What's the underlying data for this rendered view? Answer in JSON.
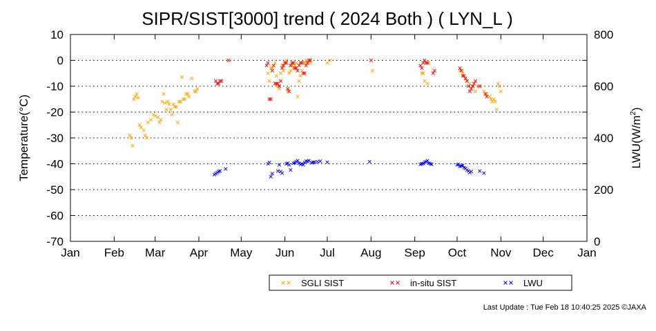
{
  "chart_data": {
    "type": "scatter",
    "title": "SIPR/SIST[3000] trend ( 2024 Both ) ( LYN_L )",
    "ylabel": "Temperature(°C)",
    "y2label_main": "LWU(W/m",
    "y2label_sup": "2",
    "y2label_end": ")",
    "ylim": [
      -70,
      10
    ],
    "y2lim": [
      0,
      800
    ],
    "yticks": [
      "10",
      "0",
      "-10",
      "-20",
      "-30",
      "-40",
      "-50",
      "-60",
      "-70"
    ],
    "y2ticks": [
      "800",
      "600",
      "400",
      "200",
      "0"
    ],
    "xlim": [
      0,
      366
    ],
    "xticks": [
      {
        "label": "Jan",
        "x": 0
      },
      {
        "label": "Feb",
        "x": 31
      },
      {
        "label": "Mar",
        "x": 60
      },
      {
        "label": "Apr",
        "x": 91
      },
      {
        "label": "May",
        "x": 121
      },
      {
        "label": "Jun",
        "x": 152
      },
      {
        "label": "Jul",
        "x": 182
      },
      {
        "label": "Aug",
        "x": 213
      },
      {
        "label": "Sep",
        "x": 244
      },
      {
        "label": "Oct",
        "x": 274
      },
      {
        "label": "Nov",
        "x": 305
      },
      {
        "label": "Dec",
        "x": 335
      },
      {
        "label": "Jan",
        "x": 366
      }
    ],
    "grid": "horizontal-dotted",
    "legend_placement": "bottom-center",
    "series": [
      {
        "name": "SGLI SIST",
        "color": "#ffa500",
        "axis": "left",
        "points": [
          [
            42,
            -29
          ],
          [
            43,
            -30
          ],
          [
            44,
            -33
          ],
          [
            45,
            -15
          ],
          [
            46,
            -14
          ],
          [
            47,
            -13
          ],
          [
            48,
            -14.5
          ],
          [
            49,
            -25
          ],
          [
            50,
            -26
          ],
          [
            52,
            -27
          ],
          [
            53,
            -29
          ],
          [
            54,
            -30
          ],
          [
            55,
            -24
          ],
          [
            57,
            -23
          ],
          [
            59,
            -21
          ],
          [
            60,
            -21.5
          ],
          [
            62,
            -22
          ],
          [
            63,
            -24
          ],
          [
            64,
            -23
          ],
          [
            65,
            -16
          ],
          [
            66,
            -13
          ],
          [
            67,
            -16.5
          ],
          [
            68,
            -19
          ],
          [
            69,
            -16
          ],
          [
            70,
            -17
          ],
          [
            71,
            -19
          ],
          [
            72,
            -21
          ],
          [
            73,
            -17
          ],
          [
            74,
            -18
          ],
          [
            75,
            -18
          ],
          [
            76,
            -24
          ],
          [
            77,
            -16
          ],
          [
            78,
            -16
          ],
          [
            79,
            -6.5
          ],
          [
            80,
            -15
          ],
          [
            81,
            -15
          ],
          [
            82,
            -13
          ],
          [
            83,
            -13
          ],
          [
            84,
            -14
          ],
          [
            86,
            -7
          ],
          [
            88,
            -12
          ],
          [
            89,
            -12
          ],
          [
            90,
            -11
          ],
          [
            140,
            -5
          ],
          [
            141,
            -8
          ],
          [
            142,
            -3
          ],
          [
            143,
            -3
          ],
          [
            145,
            -1
          ],
          [
            146,
            -6
          ],
          [
            147,
            -10
          ],
          [
            148,
            -11
          ],
          [
            149,
            -5
          ],
          [
            150,
            -2
          ],
          [
            151,
            -4
          ],
          [
            152,
            -1
          ],
          [
            153,
            0
          ],
          [
            154,
            -12
          ],
          [
            155,
            -5
          ],
          [
            156,
            -4
          ],
          [
            157,
            -2
          ],
          [
            158,
            -3
          ],
          [
            159,
            -2
          ],
          [
            160,
            -1
          ],
          [
            161,
            -14
          ],
          [
            162,
            -8
          ],
          [
            163,
            -6
          ],
          [
            164,
            -4
          ],
          [
            165,
            -1
          ],
          [
            166,
            -1
          ],
          [
            167,
            0
          ],
          [
            168,
            -1
          ],
          [
            169,
            0
          ],
          [
            170,
            -1
          ],
          [
            182,
            -1
          ],
          [
            184,
            0
          ],
          [
            214,
            -4
          ],
          [
            249,
            -5
          ],
          [
            250,
            -5
          ],
          [
            251,
            -8
          ],
          [
            253,
            -9
          ],
          [
            254,
            -1
          ],
          [
            276,
            -4
          ],
          [
            278,
            -5
          ],
          [
            280,
            -7
          ],
          [
            281,
            -8
          ],
          [
            283,
            -9
          ],
          [
            285,
            -10
          ],
          [
            287,
            -12
          ],
          [
            289,
            -10
          ],
          [
            293,
            -12
          ],
          [
            295,
            -13
          ],
          [
            297,
            -14
          ],
          [
            298,
            -15
          ],
          [
            299,
            -16
          ],
          [
            300,
            -15
          ],
          [
            301,
            -16
          ],
          [
            302,
            -19
          ],
          [
            303,
            -9
          ],
          [
            304,
            -10
          ],
          [
            305,
            -12
          ]
        ]
      },
      {
        "name": "in-situ SIST",
        "color": "#ff0000",
        "axis": "left",
        "points": [
          [
            103,
            -8
          ],
          [
            104,
            -9
          ],
          [
            105,
            -9
          ],
          [
            106,
            -8
          ],
          [
            107,
            -8
          ],
          [
            112,
            0
          ],
          [
            139,
            -2
          ],
          [
            140,
            -1
          ],
          [
            141,
            -15
          ],
          [
            142,
            -15
          ],
          [
            143,
            -4
          ],
          [
            144,
            -2
          ],
          [
            145,
            -9
          ],
          [
            146,
            -9
          ],
          [
            147,
            -9
          ],
          [
            148,
            -10
          ],
          [
            149,
            -8
          ],
          [
            150,
            -3
          ],
          [
            151,
            -2
          ],
          [
            152,
            -1
          ],
          [
            153,
            -1
          ],
          [
            154,
            -11
          ],
          [
            155,
            -12
          ],
          [
            156,
            -2
          ],
          [
            157,
            -1
          ],
          [
            158,
            -1
          ],
          [
            159,
            -3
          ],
          [
            160,
            -3
          ],
          [
            161,
            -4
          ],
          [
            162,
            -2
          ],
          [
            163,
            -1
          ],
          [
            164,
            -1
          ],
          [
            165,
            -5
          ],
          [
            166,
            -5
          ],
          [
            167,
            -2
          ],
          [
            168,
            -1
          ],
          [
            169,
            0
          ],
          [
            170,
            0
          ],
          [
            213,
            0
          ],
          [
            248,
            -2
          ],
          [
            249,
            -3
          ],
          [
            250,
            -1
          ],
          [
            251,
            0
          ],
          [
            252,
            -1
          ],
          [
            253,
            -1
          ],
          [
            257,
            -5
          ],
          [
            258,
            -4
          ],
          [
            276,
            -3
          ],
          [
            277,
            -4
          ],
          [
            278,
            -6
          ],
          [
            279,
            -6
          ],
          [
            280,
            -7
          ],
          [
            281,
            -8
          ],
          [
            282,
            -10
          ],
          [
            283,
            -12
          ],
          [
            284,
            -11
          ],
          [
            285,
            -10
          ],
          [
            286,
            -9
          ],
          [
            287,
            -8
          ],
          [
            290,
            -10
          ],
          [
            294,
            -13
          ],
          [
            295,
            -14
          ]
        ]
      },
      {
        "name": "LWU",
        "color": "#0000ff",
        "axis": "right",
        "points": [
          [
            102,
            258
          ],
          [
            103,
            262
          ],
          [
            104,
            266
          ],
          [
            105,
            270
          ],
          [
            106,
            272
          ],
          [
            110,
            280
          ],
          [
            140,
            300
          ],
          [
            141,
            305
          ],
          [
            142,
            250
          ],
          [
            143,
            262
          ],
          [
            147,
            272
          ],
          [
            148,
            296
          ],
          [
            149,
            270
          ],
          [
            150,
            264
          ],
          [
            153,
            300
          ],
          [
            154,
            302
          ],
          [
            155,
            296
          ],
          [
            156,
            276
          ],
          [
            158,
            302
          ],
          [
            159,
            304
          ],
          [
            160,
            308
          ],
          [
            161,
            312
          ],
          [
            162,
            302
          ],
          [
            163,
            298
          ],
          [
            164,
            300
          ],
          [
            165,
            296
          ],
          [
            166,
            305
          ],
          [
            167,
            310
          ],
          [
            168,
            309
          ],
          [
            169,
            312
          ],
          [
            171,
            304
          ],
          [
            172,
            306
          ],
          [
            173,
            306
          ],
          [
            175,
            308
          ],
          [
            177,
            310
          ],
          [
            182,
            306
          ],
          [
            212,
            308
          ],
          [
            248,
            298
          ],
          [
            249,
            300
          ],
          [
            250,
            301
          ],
          [
            251,
            306
          ],
          [
            252,
            308
          ],
          [
            253,
            312
          ],
          [
            254,
            302
          ],
          [
            255,
            300
          ],
          [
            256,
            298
          ],
          [
            274,
            296
          ],
          [
            275,
            298
          ],
          [
            276,
            290
          ],
          [
            277,
            292
          ],
          [
            278,
            294
          ],
          [
            279,
            285
          ],
          [
            280,
            282
          ],
          [
            281,
            276
          ],
          [
            282,
            272
          ],
          [
            283,
            266
          ],
          [
            284,
            270
          ],
          [
            290,
            272
          ],
          [
            293,
            264
          ]
        ]
      }
    ]
  },
  "footer": "Last Update : Tue Feb 18 10:40:25 2025  ©JAXA"
}
